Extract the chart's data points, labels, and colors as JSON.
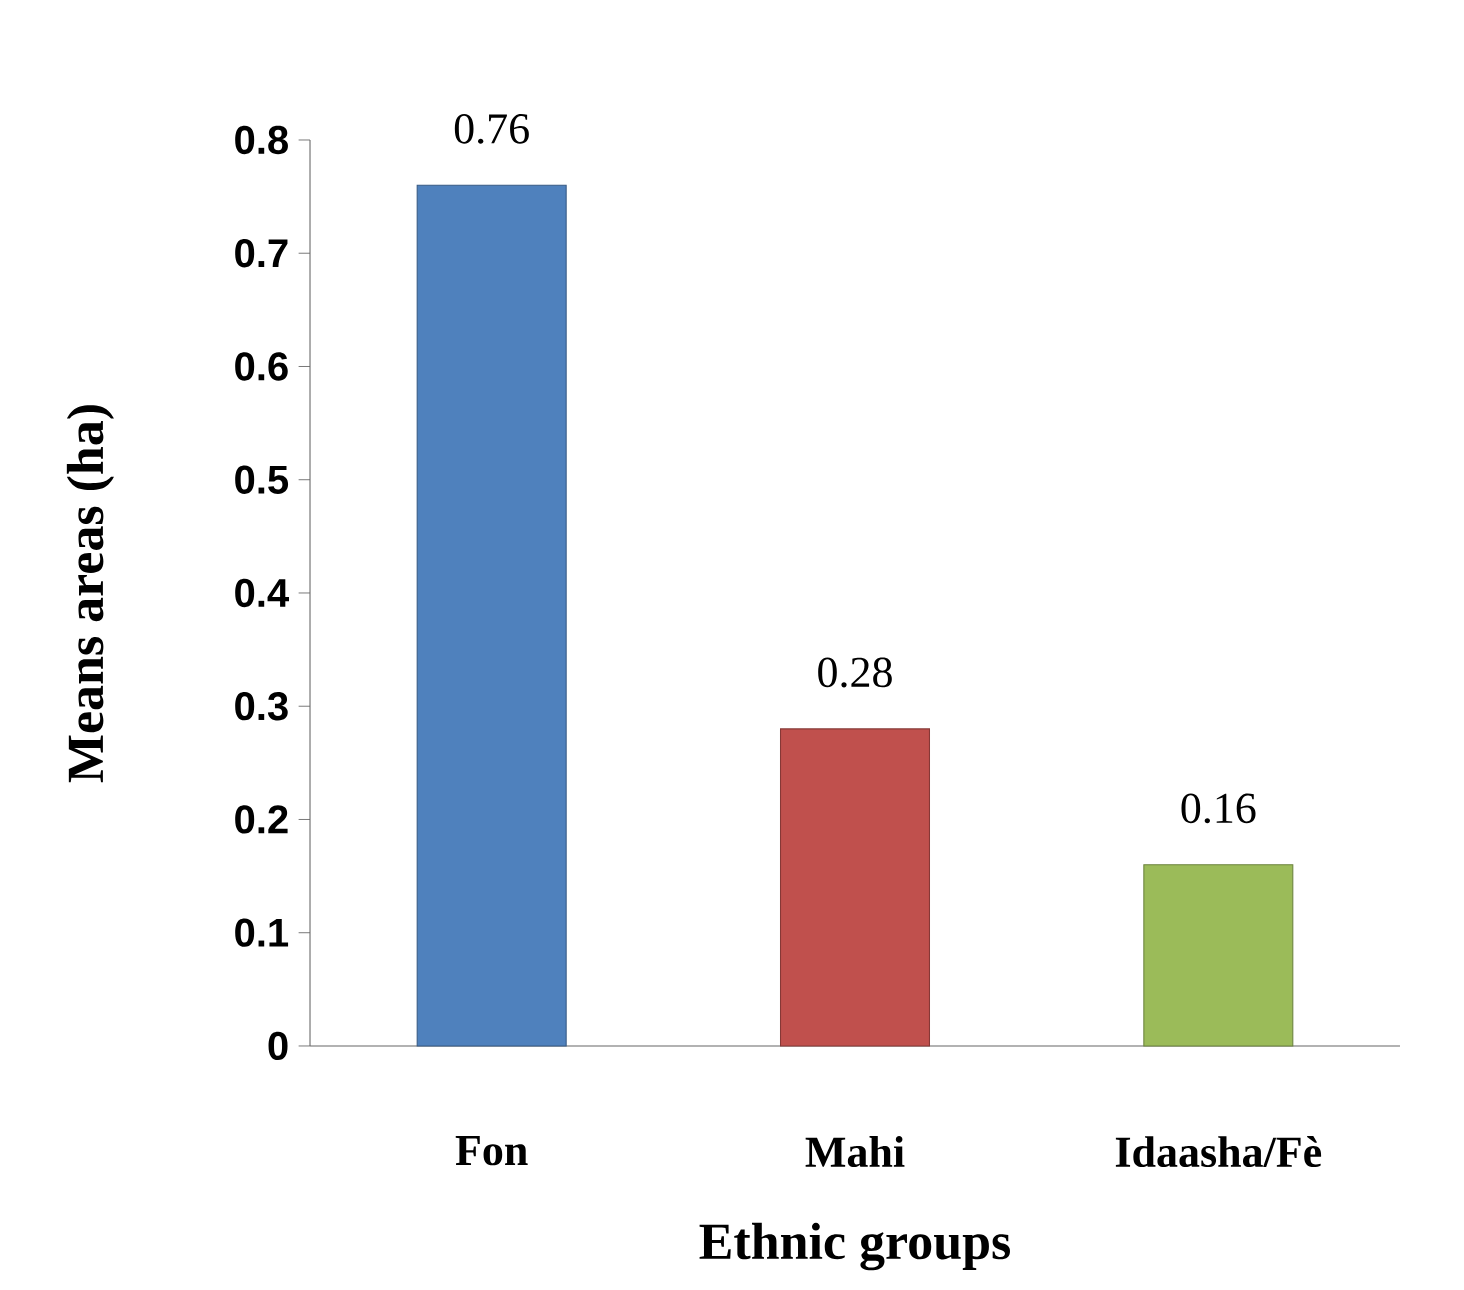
{
  "chart_data": {
    "type": "bar",
    "xlabel": "Ethnic groups",
    "ylabel": "Means areas (ha)",
    "categories": [
      "Fon",
      "Mahi",
      "Idaasha/Fè"
    ],
    "values": [
      0.76,
      0.28,
      0.16
    ],
    "colors": [
      "#4f81bd",
      "#c0504d",
      "#9bbb59"
    ],
    "ylim": [
      0,
      0.8
    ],
    "yticks": [
      0,
      0.1,
      0.2,
      0.3,
      0.4,
      0.5,
      0.6,
      0.7,
      0.8
    ],
    "data_labels": true,
    "grid": false
  }
}
